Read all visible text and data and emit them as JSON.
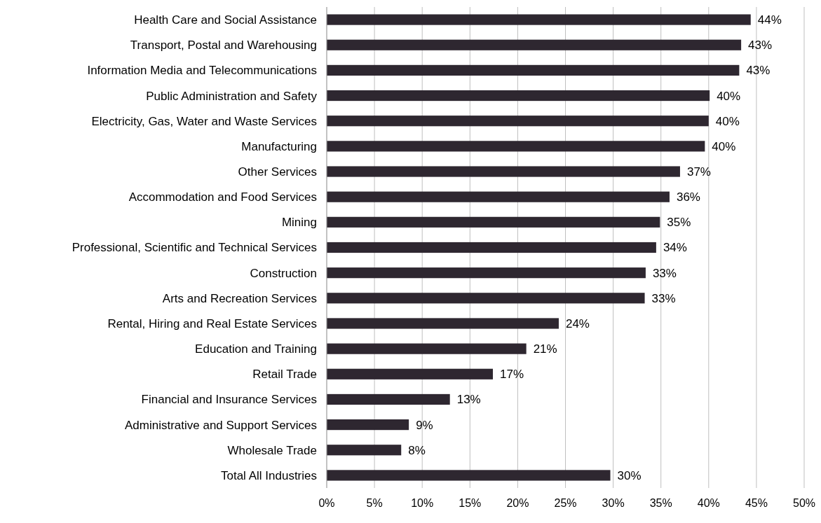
{
  "chart_data": {
    "type": "bar",
    "orientation": "horizontal",
    "categories": [
      "Health Care and Social Assistance",
      "Transport, Postal and Warehousing",
      "Information Media and Telecommunications",
      "Public Administration and Safety",
      "Electricity, Gas, Water and Waste Services",
      "Manufacturing",
      "Other Services",
      "Accommodation and Food Services",
      "Mining",
      "Professional, Scientific and Technical Services",
      "Construction",
      "Arts and Recreation Services",
      "Rental, Hiring and Real Estate Services",
      "Education and Training",
      "Retail Trade",
      "Financial and Insurance Services",
      "Administrative and Support Services",
      "Wholesale Trade",
      "Total All Industries"
    ],
    "values": [
      44.4,
      43.4,
      43.2,
      40.1,
      40.0,
      39.6,
      37.0,
      35.9,
      34.9,
      34.5,
      33.4,
      33.3,
      24.3,
      20.9,
      17.4,
      12.9,
      8.6,
      7.8,
      29.7
    ],
    "value_labels": [
      "44%",
      "43%",
      "43%",
      "40%",
      "40%",
      "40%",
      "37%",
      "36%",
      "35%",
      "34%",
      "33%",
      "33%",
      "24%",
      "21%",
      "17%",
      "13%",
      "9%",
      "8%",
      "30%"
    ],
    "color": "#2e2730",
    "xlim": [
      0,
      50
    ],
    "xticks": [
      {
        "value": 0,
        "label": "0%"
      },
      {
        "value": 5,
        "label": "5%"
      },
      {
        "value": 10,
        "label": "10%"
      },
      {
        "value": 15,
        "label": "15%"
      },
      {
        "value": 20,
        "label": "20%"
      },
      {
        "value": 25,
        "label": "25%"
      },
      {
        "value": 30,
        "label": "30%"
      },
      {
        "value": 35,
        "label": "35%"
      },
      {
        "value": 40,
        "label": "40%"
      },
      {
        "value": 45,
        "label": "45%"
      },
      {
        "value": 50,
        "label": "50%"
      }
    ],
    "grid": "x"
  }
}
